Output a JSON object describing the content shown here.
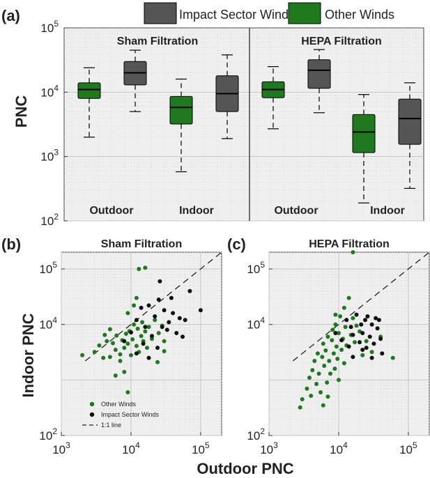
{
  "labels": {
    "panel_a": "(a)",
    "panel_b": "(b)",
    "panel_c": "(c)",
    "y_a": "PNC",
    "y_bc": "Indoor PNC",
    "x_bc": "Outdoor PNC",
    "sham": "Sham Filtration",
    "hepa": "HEPA Filtration",
    "outdoor": "Outdoor",
    "indoor": "Indoor"
  },
  "legend": {
    "impact": "Impact Sector Winds",
    "other": "Other Winds"
  },
  "scatter_legend": {
    "other": "Other Winds",
    "impact": "Impact Sector Winds",
    "line": "1:1 line"
  },
  "colors": {
    "other": "#1f7a1f",
    "impact": "#555555",
    "panel_bg": "#efefef"
  },
  "chart_data": [
    {
      "type": "box",
      "panel": "(a)",
      "ylabel": "PNC",
      "yscale": "log",
      "ylim": [
        100,
        100000
      ],
      "yticks": [
        "10^2",
        "10^3",
        "10^4",
        "10^5"
      ],
      "legend_placement": "top",
      "groups": [
        {
          "panel": "Sham Filtration",
          "location": "Outdoor",
          "series": "Other Winds",
          "whisker_low": 2000,
          "q1": 8000,
          "median": 11000,
          "q3": 14000,
          "whisker_high": 24000
        },
        {
          "panel": "Sham Filtration",
          "location": "Outdoor",
          "series": "Impact Sector Winds",
          "whisker_low": 5000,
          "q1": 13000,
          "median": 20000,
          "q3": 30000,
          "whisker_high": 45000
        },
        {
          "panel": "Sham Filtration",
          "location": "Indoor",
          "series": "Other Winds",
          "whisker_low": 580,
          "q1": 3200,
          "median": 5800,
          "q3": 8600,
          "whisker_high": 16000
        },
        {
          "panel": "Sham Filtration",
          "location": "Indoor",
          "series": "Impact Sector Winds",
          "whisker_low": 1900,
          "q1": 5000,
          "median": 9500,
          "q3": 18000,
          "whisker_high": 38000
        },
        {
          "panel": "HEPA Filtration",
          "location": "Outdoor",
          "series": "Other Winds",
          "whisker_low": 2700,
          "q1": 8200,
          "median": 11000,
          "q3": 14500,
          "whisker_high": 25000
        },
        {
          "panel": "HEPA Filtration",
          "location": "Outdoor",
          "series": "Impact Sector Winds",
          "whisker_low": 4800,
          "q1": 11500,
          "median": 22000,
          "q3": 32000,
          "whisker_high": 46000
        },
        {
          "panel": "HEPA Filtration",
          "location": "Indoor",
          "series": "Other Winds",
          "whisker_low": 190,
          "q1": 1150,
          "median": 2400,
          "q3": 4500,
          "whisker_high": 9200
        },
        {
          "panel": "HEPA Filtration",
          "location": "Indoor",
          "series": "Impact Sector Winds",
          "whisker_low": 320,
          "q1": 1550,
          "median": 3900,
          "q3": 7800,
          "whisker_high": 14000
        }
      ]
    },
    {
      "type": "scatter",
      "panel": "(b)",
      "title": "Sham Filtration",
      "xlabel": "Outdoor PNC",
      "ylabel": "Indoor PNC",
      "xscale": "log",
      "yscale": "log",
      "xlim": [
        1000,
        200000
      ],
      "ylim": [
        100,
        200000
      ],
      "reference_line": "1:1 line",
      "legend_placement": "bottom-left",
      "series": [
        {
          "name": "Other Winds",
          "points": [
            [
              2000,
              2800
            ],
            [
              3000,
              3200
            ],
            [
              3500,
              4200
            ],
            [
              4000,
              2500
            ],
            [
              4500,
              5000
            ],
            [
              5000,
              2600
            ],
            [
              5500,
              4600
            ],
            [
              6000,
              3500
            ],
            [
              6200,
              6300
            ],
            [
              7000,
              2900
            ],
            [
              7500,
              5200
            ],
            [
              8000,
              3800
            ],
            [
              8500,
              6800
            ],
            [
              9000,
              4500
            ],
            [
              9500,
              7600
            ],
            [
              10000,
              2800
            ],
            [
              10500,
              5400
            ],
            [
              11000,
              10000
            ],
            [
              12000,
              4100
            ],
            [
              12500,
              8400
            ],
            [
              13000,
              3200
            ],
            [
              14000,
              6200
            ],
            [
              14500,
              11000
            ],
            [
              15000,
              5000
            ],
            [
              16000,
              7500
            ],
            [
              17000,
              3800
            ],
            [
              18000,
              9000
            ],
            [
              20000,
              5500
            ],
            [
              22000,
              12000
            ],
            [
              25000,
              7000
            ],
            [
              28000,
              9500
            ],
            [
              30000,
              5000
            ],
            [
              9000,
              16000
            ],
            [
              11000,
              22000
            ],
            [
              12000,
              30000
            ],
            [
              13000,
              100000
            ],
            [
              16000,
              105000
            ],
            [
              8000,
              1400
            ],
            [
              9000,
              600
            ],
            [
              6000,
              1200
            ],
            [
              7000,
              2200
            ],
            [
              24000,
              2100
            ],
            [
              30000,
              3300
            ],
            [
              5000,
              8200
            ],
            [
              4200,
              6500
            ]
          ]
        },
        {
          "name": "Impact Sector Winds",
          "points": [
            [
              8000,
              5000
            ],
            [
              10000,
              7200
            ],
            [
              12000,
              12000
            ],
            [
              14000,
              20000
            ],
            [
              15000,
              4500
            ],
            [
              16000,
              9000
            ],
            [
              18000,
              22000
            ],
            [
              20000,
              6200
            ],
            [
              22000,
              14000
            ],
            [
              25000,
              28000
            ],
            [
              28000,
              9000
            ],
            [
              30000,
              18000
            ],
            [
              33000,
              8000
            ],
            [
              35000,
              11000
            ],
            [
              38000,
              30000
            ],
            [
              40000,
              16000
            ],
            [
              45000,
              7000
            ],
            [
              50000,
              13000
            ],
            [
              55000,
              6000
            ],
            [
              60000,
              12000
            ],
            [
              70000,
              40000
            ],
            [
              100000,
              18000
            ],
            [
              24000,
              3800
            ],
            [
              12000,
              3000
            ],
            [
              18000,
              2500
            ],
            [
              26000,
              60000
            ]
          ]
        }
      ]
    },
    {
      "type": "scatter",
      "panel": "(c)",
      "title": "HEPA Filtration",
      "xlabel": "Outdoor PNC",
      "ylabel": "Indoor PNC",
      "xscale": "log",
      "yscale": "log",
      "xlim": [
        1000,
        200000
      ],
      "ylim": [
        100,
        200000
      ],
      "reference_line": "1:1 line",
      "series": [
        {
          "name": "Other Winds",
          "points": [
            [
              2800,
              320
            ],
            [
              3000,
              450
            ],
            [
              3500,
              700
            ],
            [
              3800,
              1100
            ],
            [
              4000,
              520
            ],
            [
              4200,
              1500
            ],
            [
              4500,
              2200
            ],
            [
              4800,
              850
            ],
            [
              5000,
              3000
            ],
            [
              5200,
              1300
            ],
            [
              5500,
              600
            ],
            [
              5800,
              2600
            ],
            [
              6000,
              4500
            ],
            [
              6200,
              1800
            ],
            [
              6500,
              3400
            ],
            [
              6800,
              900
            ],
            [
              7000,
              6000
            ],
            [
              7300,
              2200
            ],
            [
              7600,
              1300
            ],
            [
              8000,
              5200
            ],
            [
              8200,
              8000
            ],
            [
              8500,
              3000
            ],
            [
              8800,
              1600
            ],
            [
              9000,
              10000
            ],
            [
              9300,
              4000
            ],
            [
              9600,
              2400
            ],
            [
              10000,
              7000
            ],
            [
              10500,
              14000
            ],
            [
              11000,
              3500
            ],
            [
              11500,
              5500
            ],
            [
              12000,
              20000
            ],
            [
              12500,
              9000
            ],
            [
              13000,
              4200
            ],
            [
              14000,
              30000
            ],
            [
              15000,
              6500
            ],
            [
              16000,
              13000
            ],
            [
              17000,
              4800
            ],
            [
              18000,
              9500
            ],
            [
              20000,
              7500
            ],
            [
              22000,
              2800
            ],
            [
              25000,
              5000
            ],
            [
              30000,
              3200
            ],
            [
              40000,
              6000
            ],
            [
              60000,
              2500
            ],
            [
              16000,
              200000
            ],
            [
              9000,
              15000
            ],
            [
              7000,
              500
            ],
            [
              6000,
              350
            ],
            [
              10000,
              1000
            ],
            [
              12000,
              2000
            ]
          ]
        },
        {
          "name": "Impact Sector Winds",
          "points": [
            [
              9000,
              7000
            ],
            [
              11000,
              5200
            ],
            [
              13000,
              12000
            ],
            [
              14000,
              4000
            ],
            [
              15000,
              9000
            ],
            [
              16000,
              6500
            ],
            [
              18000,
              15000
            ],
            [
              20000,
              4800
            ],
            [
              21000,
              10000
            ],
            [
              22000,
              7000
            ],
            [
              24000,
              12000
            ],
            [
              25000,
              3800
            ],
            [
              26000,
              14000
            ],
            [
              28000,
              6000
            ],
            [
              30000,
              10000
            ],
            [
              32000,
              4500
            ],
            [
              34000,
              13000
            ],
            [
              36000,
              8500
            ],
            [
              38000,
              12000
            ],
            [
              40000,
              5500
            ],
            [
              42000,
              3000
            ],
            [
              30000,
              2500
            ],
            [
              22000,
              3500
            ],
            [
              16000,
              2600
            ]
          ]
        }
      ]
    }
  ]
}
